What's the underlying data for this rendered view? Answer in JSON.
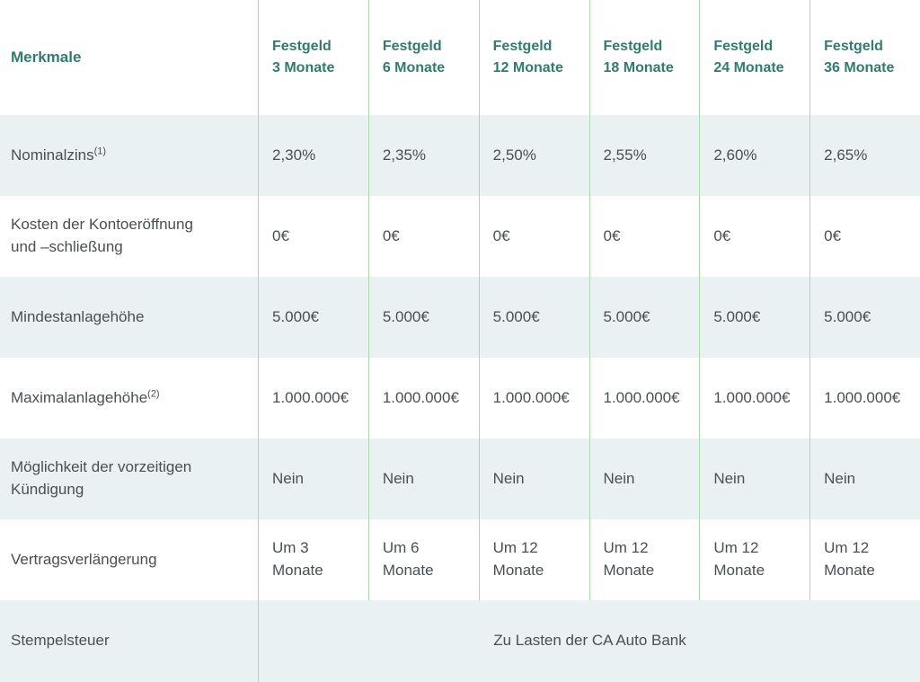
{
  "theme": {
    "accent_teal": "#2e7e6f",
    "divider_green": "#abd9ab",
    "row_tint": "#eaf1f2",
    "text_gray": "#4a4f52"
  },
  "header": {
    "label": "Merkmale",
    "columns": [
      {
        "product": "Festgeld",
        "term": "3 Monate"
      },
      {
        "product": "Festgeld",
        "term": "6 Monate"
      },
      {
        "product": "Festgeld",
        "term": "12 Monate"
      },
      {
        "product": "Festgeld",
        "term": "18 Monate"
      },
      {
        "product": "Festgeld",
        "term": "24 Monate"
      },
      {
        "product": "Festgeld",
        "term": "36 Monate"
      }
    ]
  },
  "rows": [
    {
      "label": "Nominalzins",
      "footnote": "(1)",
      "values": [
        "2,30%",
        "2,35%",
        "2,50%",
        "2,55%",
        "2,60%",
        "2,65%"
      ]
    },
    {
      "label": "Kosten der Kontoeröffnung",
      "label_line2": "und –schließung",
      "values": [
        "0€",
        "0€",
        "0€",
        "0€",
        "0€",
        "0€"
      ]
    },
    {
      "label": "Mindestanlagehöhe",
      "values": [
        "5.000€",
        "5.000€",
        "5.000€",
        "5.000€",
        "5.000€",
        "5.000€"
      ]
    },
    {
      "label": "Maximalanlagehöhe",
      "footnote": "(2)",
      "values": [
        "1.000.000€",
        "1.000.000€",
        "1.000.000€",
        "1.000.000€",
        "1.000.000€",
        "1.000.000€"
      ]
    },
    {
      "label": "Möglichkeit der vorzeitigen",
      "label_line2": "Kündigung",
      "values": [
        "Nein",
        "Nein",
        "Nein",
        "Nein",
        "Nein",
        "Nein"
      ]
    },
    {
      "label": "Vertragsverlängerung",
      "values": [
        "Um 3 Monate",
        "Um 6 Monate",
        "Um 12 Monate",
        "Um 12 Monate",
        "Um 12 Monate",
        "Um 12 Monate"
      ]
    },
    {
      "label": "Stempelsteuer",
      "merged_value": "Zu Lasten der CA Auto Bank"
    }
  ]
}
